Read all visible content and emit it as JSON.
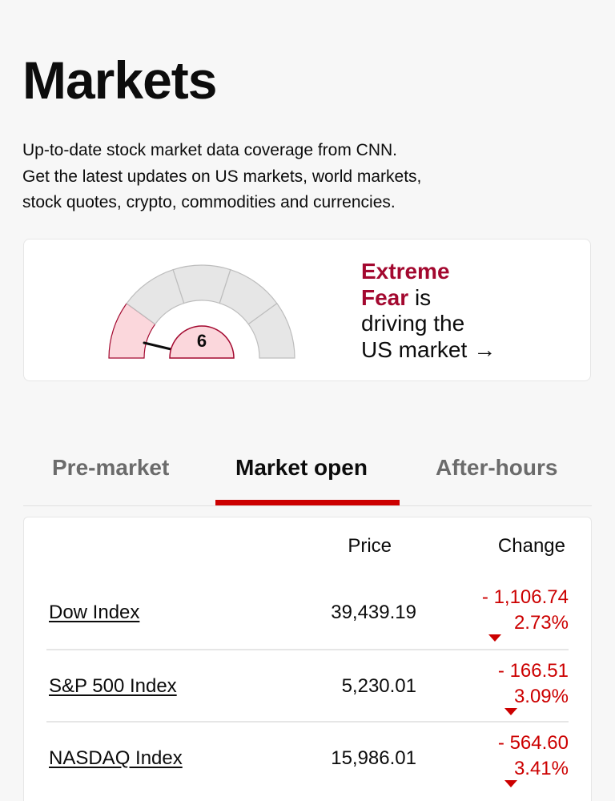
{
  "page": {
    "title": "Markets",
    "intro_lines": [
      "Up-to-date stock market data coverage from CNN.",
      "Get the latest updates on US markets, world markets,",
      "stock quotes, crypto, commodities and currencies."
    ]
  },
  "fear_greed": {
    "value": "6",
    "value_fraction": 0.06,
    "sentiment_line1": "Extreme",
    "sentiment_line2": "Fear",
    "text_after": "is",
    "text_line3": "driving the",
    "text_line4": "US market",
    "arrow_icon": "arrow-right-icon",
    "colors": {
      "fear_accent": "#a3082f",
      "active_segment_fill": "#fbd7dc",
      "inactive_segment_fill": "#e6e6e6"
    }
  },
  "tabs": [
    {
      "label": "Pre-market",
      "active": false
    },
    {
      "label": "Market open",
      "active": true
    },
    {
      "label": "After-hours",
      "active": false
    }
  ],
  "table": {
    "headers": {
      "price": "Price",
      "change": "Change"
    },
    "rows": [
      {
        "name": "Dow Index",
        "price": "39,439.19",
        "change": "- 1,106.74",
        "percent": "2.73%",
        "direction": "down"
      },
      {
        "name": "S&P 500 Index",
        "price": "5,230.01",
        "change": "- 166.51",
        "percent": "3.09%",
        "direction": "down"
      },
      {
        "name": "NASDAQ Index",
        "price": "15,986.01",
        "change": "- 564.60",
        "percent": "3.41%",
        "direction": "down"
      }
    ]
  },
  "colors": {
    "accent_red": "#cc0000",
    "down": "#cc0000"
  }
}
